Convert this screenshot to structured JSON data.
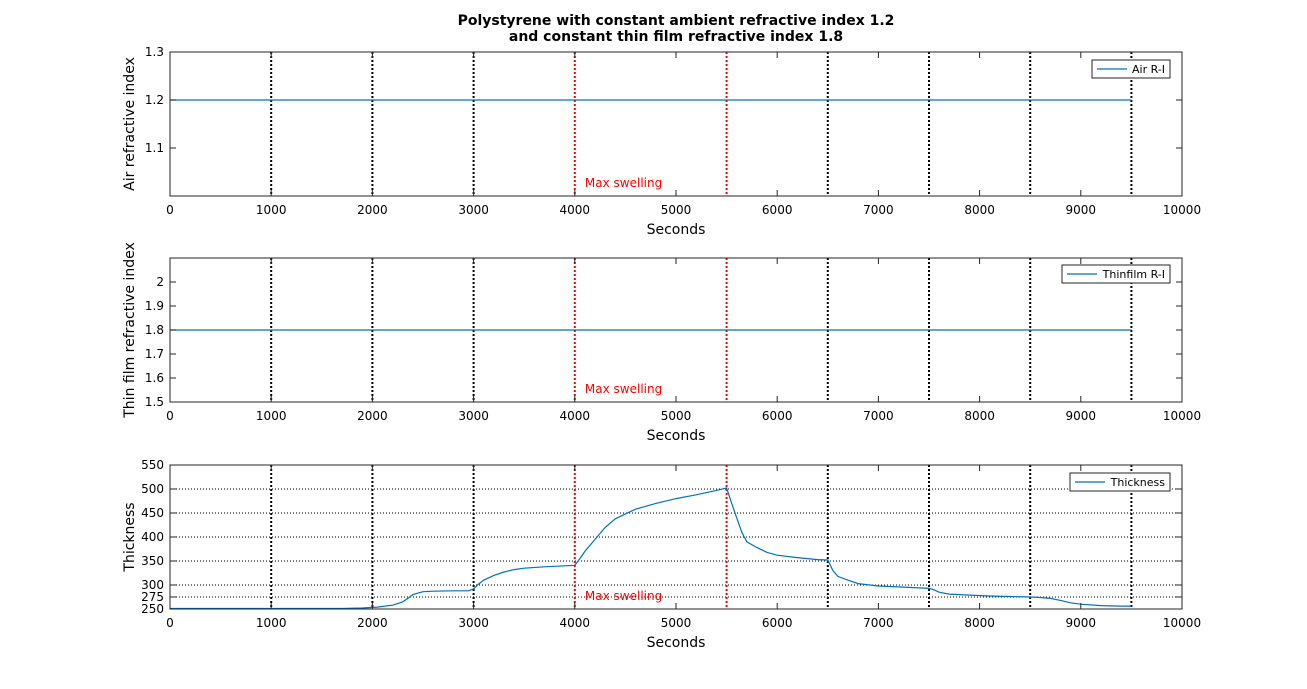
{
  "chart_data": [
    {
      "type": "line",
      "title": [
        "Polystyrene with constant ambient refractive index 1.2",
        "and constant thin film refractive index 1.8"
      ],
      "xlabel": "Seconds",
      "ylabel": "Air refractive index",
      "xlim": [
        0,
        10000
      ],
      "ylim": [
        1.0,
        1.3
      ],
      "xticks": [
        0,
        1000,
        2000,
        3000,
        4000,
        5000,
        6000,
        7000,
        8000,
        9000,
        10000
      ],
      "yticks": [
        1.1,
        1.2,
        1.3
      ],
      "ygrid": [],
      "series": [
        {
          "name": "Air R-I",
          "color": "#0072BD",
          "x": [
            0,
            9500
          ],
          "y": [
            1.2,
            1.2
          ]
        }
      ],
      "vlines": [
        {
          "x": 1000,
          "color": "#000000"
        },
        {
          "x": 2000,
          "color": "#000000"
        },
        {
          "x": 3000,
          "color": "#000000"
        },
        {
          "x": 4000,
          "color": "#ff0000"
        },
        {
          "x": 5500,
          "color": "#ff0000"
        },
        {
          "x": 6500,
          "color": "#000000"
        },
        {
          "x": 7500,
          "color": "#000000"
        },
        {
          "x": 8500,
          "color": "#000000"
        },
        {
          "x": 9500,
          "color": "#000000"
        }
      ],
      "annotation": {
        "text": "Max swelling",
        "x": 4100,
        "y": 1.0,
        "color": "#ff0000"
      },
      "legend": "top-right"
    },
    {
      "type": "line",
      "title": [],
      "xlabel": "Seconds",
      "ylabel": "Thin film refractive index",
      "xlim": [
        0,
        10000
      ],
      "ylim": [
        1.5,
        2.1
      ],
      "xticks": [
        0,
        1000,
        2000,
        3000,
        4000,
        5000,
        6000,
        7000,
        8000,
        9000,
        10000
      ],
      "yticks": [
        1.5,
        1.6,
        1.7,
        1.8,
        1.9,
        2
      ],
      "ygrid": [],
      "series": [
        {
          "name": "Thinfilm R-I",
          "color": "#0072BD",
          "x": [
            0,
            9500
          ],
          "y": [
            1.8,
            1.8
          ]
        }
      ],
      "vlines": [
        {
          "x": 1000,
          "color": "#000000"
        },
        {
          "x": 2000,
          "color": "#000000"
        },
        {
          "x": 3000,
          "color": "#000000"
        },
        {
          "x": 4000,
          "color": "#ff0000"
        },
        {
          "x": 5500,
          "color": "#ff0000"
        },
        {
          "x": 6500,
          "color": "#000000"
        },
        {
          "x": 7500,
          "color": "#000000"
        },
        {
          "x": 8500,
          "color": "#000000"
        },
        {
          "x": 9500,
          "color": "#000000"
        }
      ],
      "annotation": {
        "text": "Max swelling",
        "x": 4100,
        "y": 1.5,
        "color": "#ff0000"
      },
      "legend": "top-right"
    },
    {
      "type": "line",
      "title": [],
      "xlabel": "Seconds",
      "ylabel": "Thickness",
      "xlim": [
        0,
        10000
      ],
      "ylim": [
        250,
        550
      ],
      "xticks": [
        0,
        1000,
        2000,
        3000,
        4000,
        5000,
        6000,
        7000,
        8000,
        9000,
        10000
      ],
      "yticks": [
        250,
        275,
        300,
        350,
        400,
        450,
        500,
        550
      ],
      "ygrid": [
        275,
        300,
        350,
        400,
        450,
        500
      ],
      "series": [
        {
          "name": "Thickness",
          "color": "#0072BD",
          "x": [
            0,
            1000,
            1700,
            1900,
            2050,
            2200,
            2300,
            2350,
            2400,
            2500,
            2600,
            2800,
            2950,
            3000,
            3050,
            3100,
            3200,
            3300,
            3400,
            3500,
            3700,
            3900,
            4000,
            4050,
            4100,
            4200,
            4300,
            4400,
            4600,
            4800,
            5000,
            5200,
            5400,
            5500,
            5550,
            5600,
            5650,
            5700,
            5800,
            5900,
            6000,
            6200,
            6400,
            6500,
            6550,
            6600,
            6700,
            6800,
            7000,
            7200,
            7400,
            7500,
            7550,
            7600,
            7700,
            7900,
            8100,
            8300,
            8500,
            8600,
            8700,
            8800,
            8900,
            9000,
            9200,
            9400,
            9500
          ],
          "y": [
            251,
            251,
            251,
            252,
            254,
            258,
            265,
            272,
            280,
            286,
            287,
            288,
            288,
            292,
            302,
            310,
            320,
            327,
            332,
            335,
            338,
            340,
            341,
            355,
            370,
            395,
            420,
            438,
            458,
            470,
            480,
            488,
            497,
            502,
            470,
            440,
            410,
            390,
            378,
            368,
            362,
            357,
            353,
            352,
            330,
            318,
            310,
            303,
            298,
            296,
            294,
            293,
            290,
            285,
            281,
            279,
            277,
            276,
            275,
            274,
            272,
            268,
            263,
            260,
            257,
            256,
            256
          ]
        }
      ],
      "vlines": [
        {
          "x": 1000,
          "color": "#000000"
        },
        {
          "x": 2000,
          "color": "#000000"
        },
        {
          "x": 3000,
          "color": "#000000"
        },
        {
          "x": 4000,
          "color": "#ff0000"
        },
        {
          "x": 5500,
          "color": "#ff0000"
        },
        {
          "x": 6500,
          "color": "#000000"
        },
        {
          "x": 7500,
          "color": "#000000"
        },
        {
          "x": 8500,
          "color": "#000000"
        },
        {
          "x": 9500,
          "color": "#000000"
        }
      ],
      "annotation": {
        "text": "Max swelling",
        "x": 4100,
        "y": 250,
        "color": "#ff0000"
      },
      "legend": "top-right"
    }
  ]
}
